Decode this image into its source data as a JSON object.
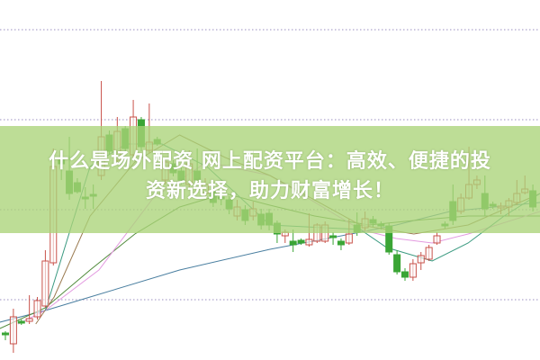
{
  "caption": {
    "line1": "什么是场外配资 网上配资平台：高效、便捷的投",
    "line2": "资新选择，助力财富增长！"
  },
  "colors": {
    "up": "#c8524a",
    "down": "#3aa535",
    "banner": "#aad478",
    "grid": "#9a8fc0"
  },
  "chart_data": {
    "type": "candlestick",
    "title": "",
    "xlabel": "",
    "ylabel": "",
    "ylim": [
      0,
      40
    ],
    "grid": true,
    "grid_levels": [
      6.7,
      16.7,
      26.7,
      36.7
    ],
    "candles_ohlc": [
      [
        3.0,
        3.2,
        2.2,
        2.8
      ],
      [
        1.8,
        5.7,
        0.8,
        4.8
      ],
      [
        4.3,
        4.5,
        3.9,
        4.1
      ],
      [
        4.3,
        7.2,
        4.0,
        4.6
      ],
      [
        4.8,
        7.0,
        4.5,
        6.6
      ],
      [
        6.0,
        12.2,
        5.8,
        11.0
      ],
      [
        10.8,
        23.5,
        10.5,
        21.5
      ],
      [
        22.2,
        23.0,
        20.0,
        21.8
      ],
      [
        21.0,
        24.8,
        17.8,
        18.5
      ],
      [
        19.7,
        20.2,
        18.5,
        18.7
      ],
      [
        18.1,
        19.2,
        16.8,
        17.9
      ],
      [
        18.4,
        19.5,
        16.8,
        18.2
      ],
      [
        20.5,
        31.0,
        20.0,
        24.8
      ],
      [
        25.0,
        25.5,
        22.8,
        23.2
      ],
      [
        22.2,
        27.0,
        21.8,
        25.4
      ],
      [
        25.7,
        26.0,
        23.0,
        23.5
      ],
      [
        22.8,
        28.9,
        22.4,
        27.0
      ],
      [
        26.7,
        27.0,
        23.2,
        23.7
      ],
      [
        23.3,
        28.5,
        23.0,
        24.2
      ],
      [
        24.5,
        24.8,
        23.8,
        24.0
      ],
      [
        20.0,
        22.5,
        19.5,
        22.0
      ],
      [
        21.8,
        22.2,
        20.4,
        20.8
      ],
      [
        21.0,
        21.4,
        19.5,
        20.0
      ],
      [
        19.5,
        23.3,
        19.2,
        21.8
      ],
      [
        21.0,
        23.5,
        19.5,
        20.0
      ],
      [
        18.5,
        20.2,
        18.0,
        19.5
      ],
      [
        18.7,
        19.2,
        17.0,
        17.5
      ],
      [
        18.1,
        19.0,
        17.2,
        17.9
      ],
      [
        17.8,
        18.2,
        16.2,
        16.8
      ],
      [
        16.0,
        17.8,
        15.5,
        17.0
      ],
      [
        16.7,
        17.2,
        15.0,
        15.5
      ],
      [
        16.0,
        17.6,
        15.5,
        16.8
      ],
      [
        16.2,
        16.8,
        14.5,
        15.0
      ],
      [
        16.3,
        16.8,
        14.4,
        15.0
      ],
      [
        15.2,
        15.5,
        13.0,
        14.0
      ],
      [
        13.8,
        14.5,
        13.0,
        14.2
      ],
      [
        13.2,
        14.5,
        12.0,
        12.8
      ],
      [
        13.3,
        13.5,
        12.8,
        13.0
      ],
      [
        12.8,
        16.3,
        12.6,
        13.4
      ],
      [
        13.2,
        15.2,
        13.0,
        15.0
      ],
      [
        13.2,
        15.4,
        13.0,
        15.0
      ],
      [
        13.8,
        14.2,
        12.8,
        13.6
      ],
      [
        13.2,
        13.5,
        12.2,
        12.8
      ],
      [
        13.0,
        15.7,
        12.8,
        14.0
      ],
      [
        15.0,
        16.4,
        13.8,
        14.2
      ],
      [
        14.7,
        16.5,
        14.4,
        15.7
      ],
      [
        15.6,
        16.0,
        14.8,
        15.2
      ],
      [
        15.1,
        15.4,
        14.5,
        14.9
      ],
      [
        14.9,
        15.2,
        11.7,
        12.0
      ],
      [
        11.7,
        12.2,
        9.5,
        9.8
      ],
      [
        9.8,
        10.2,
        8.8,
        9.2
      ],
      [
        9.2,
        11.2,
        8.8,
        10.7
      ],
      [
        10.8,
        12.0,
        10.0,
        11.6
      ],
      [
        11.2,
        12.8,
        11.0,
        12.5
      ],
      [
        13.0,
        14.2,
        12.8,
        13.8
      ],
      [
        15.1,
        15.4,
        14.6,
        14.9
      ],
      [
        17.6,
        19.5,
        15.0,
        15.5
      ],
      [
        16.5,
        18.5,
        16.2,
        18.0
      ],
      [
        18.0,
        23.7,
        17.8,
        19.5
      ],
      [
        19.5,
        20.5,
        19.0,
        20.0
      ],
      [
        18.5,
        20.5,
        16.0,
        16.8
      ],
      [
        17.3,
        17.6,
        16.8,
        17.1
      ],
      [
        16.9,
        17.5,
        16.2,
        17.1
      ],
      [
        17.0,
        18.0,
        16.0,
        17.7
      ],
      [
        17.5,
        20.0,
        17.2,
        18.5
      ],
      [
        18.6,
        20.5,
        18.4,
        19.0
      ],
      [
        18.8,
        19.5,
        16.5,
        17.0
      ]
    ],
    "moving_averages": [
      {
        "color": "#4a7fa0",
        "points": [
          [
            -0.7,
            4.2
          ],
          [
            5,
            5.5
          ],
          [
            10.6,
            7.0
          ],
          [
            21.8,
            10.0
          ],
          [
            33.1,
            12.3
          ],
          [
            44.4,
            14.2
          ],
          [
            48.9,
            15.0
          ],
          [
            55.6,
            16.5
          ],
          [
            66.9,
            17.5
          ]
        ]
      },
      {
        "color": "#4f8a3a",
        "points": [
          [
            -0.7,
            3.5
          ],
          [
            5,
            5.8
          ],
          [
            10.6,
            10.0
          ],
          [
            16.2,
            14.0
          ],
          [
            21.8,
            17.0
          ],
          [
            27.5,
            18.5
          ],
          [
            33.1,
            17.2
          ],
          [
            38.7,
            16.0
          ],
          [
            45.5,
            15.0
          ],
          [
            51.1,
            15.5
          ],
          [
            57.9,
            16.0
          ],
          [
            66.9,
            16.0
          ]
        ]
      },
      {
        "color": "#e39ae0",
        "points": [
          [
            1.6,
            4.0
          ],
          [
            5,
            5.5
          ],
          [
            11.7,
            10.0
          ],
          [
            18.5,
            18.0
          ],
          [
            25.2,
            22.0
          ],
          [
            33.1,
            20.5
          ],
          [
            44.4,
            14.5
          ],
          [
            48.9,
            13.5
          ],
          [
            53.4,
            13.0
          ],
          [
            57.9,
            14.0
          ],
          [
            66.9,
            16.5
          ]
        ]
      },
      {
        "color": "#9a7a50",
        "points": [
          [
            3.8,
            4.0
          ],
          [
            6.1,
            7.0
          ],
          [
            10.6,
            16.0
          ],
          [
            16.2,
            22.0
          ],
          [
            21.8,
            25.0
          ],
          [
            27.5,
            22.5
          ],
          [
            33.1,
            20.5
          ],
          [
            44.4,
            15.0
          ],
          [
            51.1,
            14.0
          ],
          [
            57.9,
            15.0
          ],
          [
            66.9,
            18.5
          ]
        ]
      },
      {
        "color": "#3a9a80",
        "points": [
          [
            5,
            5.5
          ],
          [
            8.3,
            15.0
          ],
          [
            10.6,
            21.5
          ],
          [
            15.1,
            24.0
          ],
          [
            19.6,
            24.0
          ],
          [
            25.2,
            21.5
          ],
          [
            33.1,
            15.0
          ],
          [
            44.4,
            14.5
          ],
          [
            47.7,
            12.5
          ],
          [
            53.4,
            11.0
          ],
          [
            57.9,
            13.0
          ],
          [
            62.4,
            16.0
          ],
          [
            66.9,
            18.5
          ]
        ]
      }
    ]
  }
}
